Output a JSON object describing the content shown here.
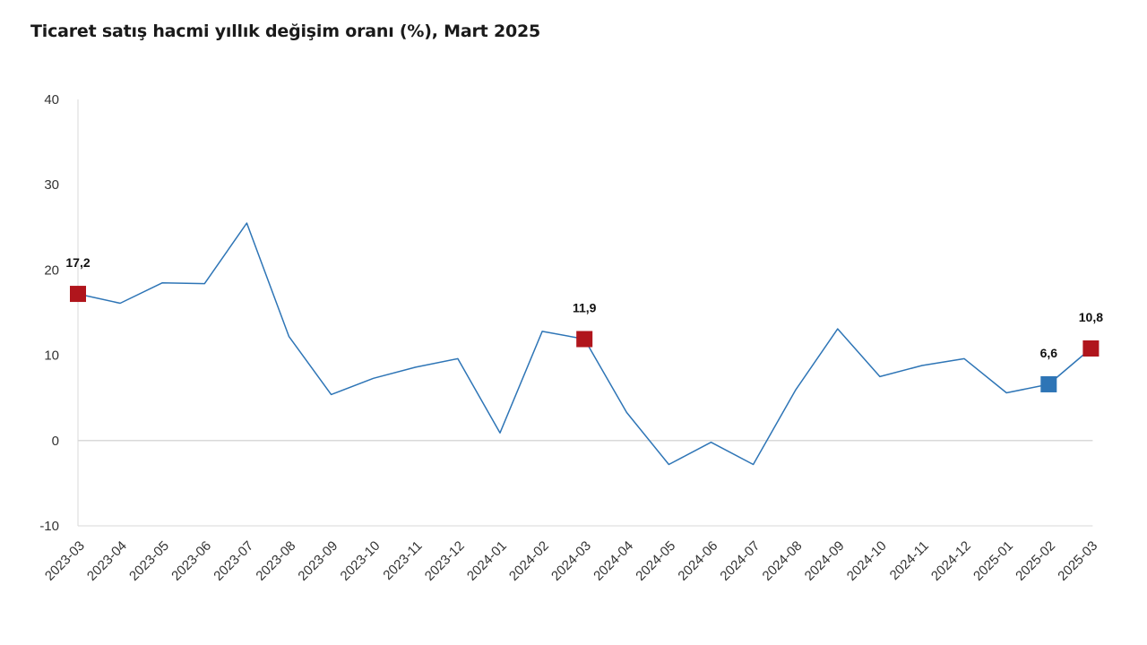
{
  "chart_data": {
    "type": "line",
    "title": "Ticaret satış hacmi yıllık değişim oranı (%), Mart 2025",
    "xlabel": "",
    "ylabel": "",
    "ylim": [
      -10,
      40
    ],
    "yticks": [
      -10,
      0,
      10,
      20,
      30,
      40
    ],
    "grid": false,
    "legend": "none",
    "categories": [
      "2023-03",
      "2023-04",
      "2023-05",
      "2023-06",
      "2023-07",
      "2023-08",
      "2023-09",
      "2023-10",
      "2023-11",
      "2023-12",
      "2024-01",
      "2024-02",
      "2024-03",
      "2024-04",
      "2024-05",
      "2024-06",
      "2024-07",
      "2024-08",
      "2024-09",
      "2024-10",
      "2024-11",
      "2024-12",
      "2025-01",
      "2025-02",
      "2025-03"
    ],
    "series": [
      {
        "values": [
          17.2,
          16.1,
          18.5,
          18.4,
          25.5,
          12.2,
          5.4,
          7.3,
          8.6,
          9.6,
          0.9,
          12.8,
          11.9,
          3.3,
          -2.8,
          -0.2,
          -2.8,
          5.9,
          13.1,
          7.5,
          8.8,
          9.6,
          5.6,
          6.6,
          10.8
        ],
        "color": "#2e75b6"
      }
    ],
    "highlighted_points": [
      {
        "category": "2023-03",
        "label": "17,2",
        "color": "#b0151c"
      },
      {
        "category": "2024-03",
        "label": "11,9",
        "color": "#b0151c"
      },
      {
        "category": "2025-02",
        "label": "6,6",
        "color": "#2e75b6"
      },
      {
        "category": "2025-03",
        "label": "10,8",
        "color": "#b0151c"
      }
    ],
    "colors": {
      "axis": "#d9d9d9",
      "line": "#2e75b6"
    }
  }
}
